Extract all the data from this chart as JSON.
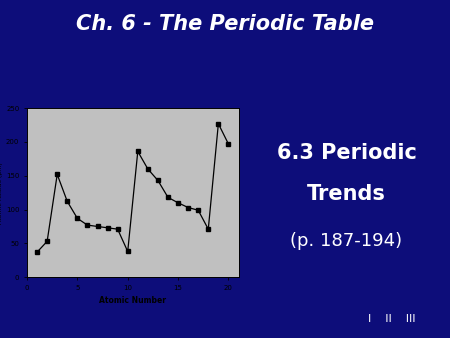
{
  "title": "Ch. 6 - The Periodic Table",
  "subtitle_line1": "6.3 Periodic",
  "subtitle_line2": "Trends",
  "subtitle_line3": "(p. 187-194)",
  "footer": "I    II    III",
  "bg_color": "#0d0d7a",
  "gold_color": "#c8a020",
  "chart_bg": "#c0c0c0",
  "atomic_numbers": [
    1,
    2,
    3,
    4,
    5,
    6,
    7,
    8,
    9,
    10,
    11,
    12,
    13,
    14,
    15,
    16,
    17,
    18,
    19,
    20
  ],
  "atomic_radii": [
    37,
    53,
    152,
    112,
    87,
    77,
    75,
    73,
    71,
    38,
    186,
    160,
    143,
    118,
    110,
    103,
    99,
    71,
    227,
    197
  ],
  "xlabel": "Atomic Number",
  "ylabel": "Atomic Radius (pm)",
  "ylim": [
    0,
    250
  ],
  "xlim": [
    0,
    21
  ],
  "xticks": [
    0,
    5,
    10,
    15,
    20
  ],
  "yticks": [
    0,
    50,
    100,
    150,
    200,
    250
  ]
}
